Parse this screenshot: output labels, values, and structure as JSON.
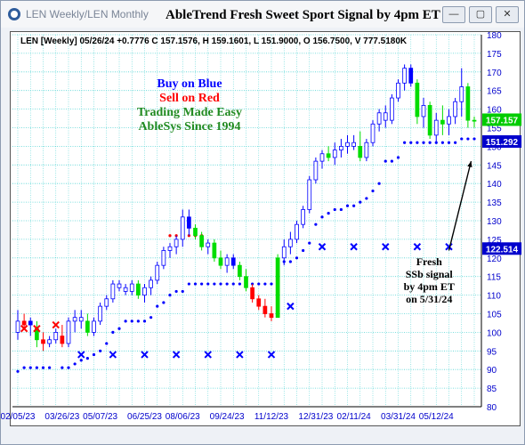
{
  "window": {
    "title": "LEN Weekly/LEN Monthly",
    "chart_title": "AbleTrend Fresh Sweet Sport Signal by 4pm ET",
    "buttons": [
      "—",
      "▢",
      "✕"
    ]
  },
  "info_line": "LEN [Weekly] 05/26/24 +0.7776 C 157.1576, H 159.1601, L 151.9000, O 156.7500, V 777.5180K",
  "promo": {
    "line1": "Buy on Blue",
    "line2": "Sell on Red",
    "line3": "Trading Made Easy",
    "line4": "AbleSys Since 1994"
  },
  "annotation": [
    "Fresh",
    "SSb signal",
    "by 4pm ET",
    "on 5/31/24"
  ],
  "colors": {
    "up": "#0000ff",
    "down": "#ff0000",
    "green": "#00dd00",
    "grid": "#55d4d4",
    "axis_text": "#0000cc",
    "promo_blue": "#0000ff",
    "promo_red": "#ff0000",
    "promo_green": "#228b22"
  },
  "chart_data": {
    "type": "candlestick",
    "title": "AbleTrend Fresh Sweet Sport Signal by 4pm ET",
    "ylim": [
      80,
      180
    ],
    "y_ticks": [
      80,
      85,
      90,
      95,
      100,
      105,
      110,
      115,
      120,
      125,
      130,
      135,
      140,
      145,
      150,
      155,
      160,
      165,
      170,
      175,
      180
    ],
    "x_tick_labels": [
      "02/05/23",
      "03/26/23",
      "05/07/23",
      "06/25/23",
      "08/06/23",
      "09/24/23",
      "11/12/23",
      "12/31/23",
      "02/11/24",
      "03/31/24",
      "05/12/24"
    ],
    "x_tick_index": [
      0,
      7,
      13,
      20,
      26,
      33,
      40,
      47,
      53,
      60,
      66
    ],
    "price_labels": [
      {
        "value": 157.157,
        "text": "157.157",
        "color": "#00cc00"
      },
      {
        "value": 151.292,
        "text": "151.292",
        "color": "#0000cc"
      },
      {
        "value": 122.514,
        "text": "122.514",
        "color": "#0000cc"
      }
    ],
    "bars": [
      [
        100,
        106,
        98,
        103,
        "u"
      ],
      [
        103,
        105,
        101,
        102,
        "r"
      ],
      [
        102,
        104,
        99,
        103,
        "b"
      ],
      [
        101,
        103,
        96,
        98,
        "g"
      ],
      [
        98,
        100,
        95,
        97,
        "r"
      ],
      [
        97,
        99,
        96,
        98,
        "u"
      ],
      [
        98,
        101,
        97,
        100,
        "u"
      ],
      [
        99,
        102,
        96,
        97,
        "r"
      ],
      [
        97,
        104,
        96,
        103,
        "u"
      ],
      [
        103,
        106,
        100,
        104,
        "u"
      ],
      [
        104,
        106,
        101,
        103,
        "u"
      ],
      [
        103,
        105,
        99,
        100,
        "g"
      ],
      [
        100,
        104,
        99,
        103,
        "u"
      ],
      [
        103,
        108,
        102,
        107,
        "u"
      ],
      [
        107,
        110,
        106,
        109,
        "u"
      ],
      [
        109,
        114,
        108,
        113,
        "u"
      ],
      [
        113,
        114,
        111,
        112,
        "u"
      ],
      [
        112,
        113,
        110,
        111,
        "u"
      ],
      [
        111,
        114,
        110,
        113,
        "u"
      ],
      [
        113,
        114,
        109,
        110,
        "g"
      ],
      [
        110,
        113,
        108,
        112,
        "u"
      ],
      [
        112,
        115,
        110,
        114,
        "u"
      ],
      [
        114,
        119,
        113,
        118,
        "u"
      ],
      [
        118,
        123,
        117,
        122,
        "u"
      ],
      [
        122,
        124,
        120,
        123,
        "u"
      ],
      [
        123,
        126,
        121,
        125,
        "u"
      ],
      [
        125,
        133,
        123,
        131,
        "u"
      ],
      [
        131,
        133,
        126,
        128,
        "b"
      ],
      [
        128,
        129,
        125,
        126,
        "g"
      ],
      [
        126,
        127,
        122,
        123,
        "g"
      ],
      [
        123,
        125,
        121,
        124,
        "u"
      ],
      [
        124,
        125,
        119,
        120,
        "g"
      ],
      [
        120,
        122,
        117,
        118,
        "g"
      ],
      [
        118,
        121,
        116,
        120,
        "u"
      ],
      [
        120,
        121,
        117,
        118,
        "b"
      ],
      [
        118,
        119,
        114,
        115,
        "g"
      ],
      [
        115,
        117,
        111,
        112,
        "g"
      ],
      [
        112,
        113,
        108,
        109,
        "r"
      ],
      [
        109,
        110,
        106,
        107,
        "r"
      ],
      [
        107,
        109,
        104,
        105,
        "r"
      ],
      [
        105,
        107,
        103,
        104,
        "r"
      ],
      [
        104,
        121,
        104,
        120,
        "g"
      ],
      [
        120,
        125,
        118,
        123,
        "u"
      ],
      [
        123,
        127,
        121,
        125,
        "u"
      ],
      [
        125,
        130,
        124,
        129,
        "u"
      ],
      [
        129,
        134,
        128,
        133,
        "u"
      ],
      [
        133,
        142,
        132,
        141,
        "u"
      ],
      [
        141,
        147,
        140,
        146,
        "u"
      ],
      [
        146,
        149,
        144,
        148,
        "u"
      ],
      [
        148,
        150,
        146,
        147,
        "g"
      ],
      [
        147,
        151,
        145,
        149,
        "u"
      ],
      [
        149,
        152,
        147,
        150,
        "u"
      ],
      [
        150,
        153,
        148,
        151,
        "u"
      ],
      [
        151,
        153,
        149,
        150,
        "u"
      ],
      [
        150,
        154,
        146,
        147,
        "g"
      ],
      [
        147,
        152,
        146,
        151,
        "u"
      ],
      [
        151,
        157,
        150,
        156,
        "u"
      ],
      [
        156,
        160,
        154,
        159,
        "u"
      ],
      [
        159,
        161,
        155,
        157,
        "u"
      ],
      [
        157,
        164,
        156,
        163,
        "u"
      ],
      [
        163,
        168,
        162,
        167,
        "u"
      ],
      [
        167,
        172,
        165,
        171,
        "u"
      ],
      [
        171,
        172,
        166,
        167,
        "b"
      ],
      [
        167,
        168,
        156,
        158,
        "g"
      ],
      [
        158,
        163,
        155,
        161,
        "u"
      ],
      [
        161,
        162,
        152,
        153,
        "g"
      ],
      [
        153,
        159,
        151,
        157,
        "u"
      ],
      [
        157,
        161,
        153,
        156,
        "g"
      ],
      [
        156,
        160,
        153,
        158,
        "u"
      ],
      [
        158,
        163,
        156,
        162,
        "u"
      ],
      [
        162,
        171,
        158,
        166,
        "u"
      ],
      [
        166,
        167,
        155,
        157,
        "g"
      ],
      [
        157,
        158,
        155,
        157,
        "g"
      ]
    ],
    "support_dots": [
      [
        0,
        89.5
      ],
      [
        1,
        90.5
      ],
      [
        2,
        90.5
      ],
      [
        3,
        90.5
      ],
      [
        4,
        90.5
      ],
      [
        5,
        90.5
      ],
      [
        7,
        90.5
      ],
      [
        8,
        90.5
      ],
      [
        9,
        91.5
      ],
      [
        10,
        92.5
      ],
      [
        11,
        93
      ],
      [
        12,
        94
      ],
      [
        13,
        95
      ],
      [
        14,
        97
      ],
      [
        15,
        100
      ],
      [
        16,
        101
      ],
      [
        17,
        103
      ],
      [
        18,
        103
      ],
      [
        19,
        103
      ],
      [
        20,
        103
      ],
      [
        21,
        104
      ],
      [
        22,
        107
      ],
      [
        23,
        108
      ],
      [
        24,
        110
      ],
      [
        25,
        111
      ],
      [
        26,
        111
      ],
      [
        27,
        113
      ],
      [
        28,
        113
      ],
      [
        29,
        113
      ],
      [
        30,
        113
      ],
      [
        31,
        113
      ],
      [
        32,
        113
      ],
      [
        33,
        113
      ],
      [
        34,
        113
      ],
      [
        35,
        113
      ],
      [
        36,
        113
      ],
      [
        37,
        113
      ],
      [
        38,
        113
      ],
      [
        39,
        113
      ],
      [
        40,
        113
      ],
      [
        41,
        119
      ],
      [
        42,
        119
      ],
      [
        43,
        119
      ],
      [
        44,
        120
      ],
      [
        45,
        122
      ],
      [
        46,
        124
      ],
      [
        47,
        129
      ],
      [
        48,
        131
      ],
      [
        49,
        132
      ],
      [
        50,
        133
      ],
      [
        51,
        133
      ],
      [
        52,
        134
      ],
      [
        53,
        134
      ],
      [
        54,
        135
      ],
      [
        55,
        136
      ],
      [
        56,
        138
      ],
      [
        57,
        140
      ],
      [
        58,
        146
      ],
      [
        59,
        146
      ],
      [
        60,
        147
      ],
      [
        61,
        151
      ],
      [
        62,
        151
      ],
      [
        63,
        151
      ],
      [
        64,
        151
      ],
      [
        65,
        151
      ],
      [
        66,
        151
      ],
      [
        67,
        151
      ],
      [
        68,
        151
      ],
      [
        69,
        151
      ],
      [
        70,
        152
      ],
      [
        71,
        152
      ],
      [
        72,
        152
      ]
    ],
    "resistance_dots": [
      [
        24,
        126
      ],
      [
        25,
        126
      ],
      [
        26,
        126
      ],
      [
        27,
        126
      ],
      [
        28,
        126
      ],
      [
        29,
        126
      ]
    ],
    "red_x": [
      [
        1,
        101
      ],
      [
        3,
        101
      ],
      [
        6,
        102
      ]
    ],
    "blue_x": [
      [
        10,
        94
      ],
      [
        15,
        94
      ],
      [
        20,
        94
      ],
      [
        25,
        94
      ],
      [
        30,
        94
      ],
      [
        35,
        94
      ],
      [
        40,
        94
      ],
      [
        43,
        107
      ],
      [
        48,
        123
      ],
      [
        53,
        123
      ],
      [
        58,
        123
      ],
      [
        63,
        123
      ],
      [
        68,
        123
      ]
    ],
    "arrow": {
      "from": [
        68,
        122
      ],
      "to": [
        71.5,
        146
      ]
    }
  }
}
